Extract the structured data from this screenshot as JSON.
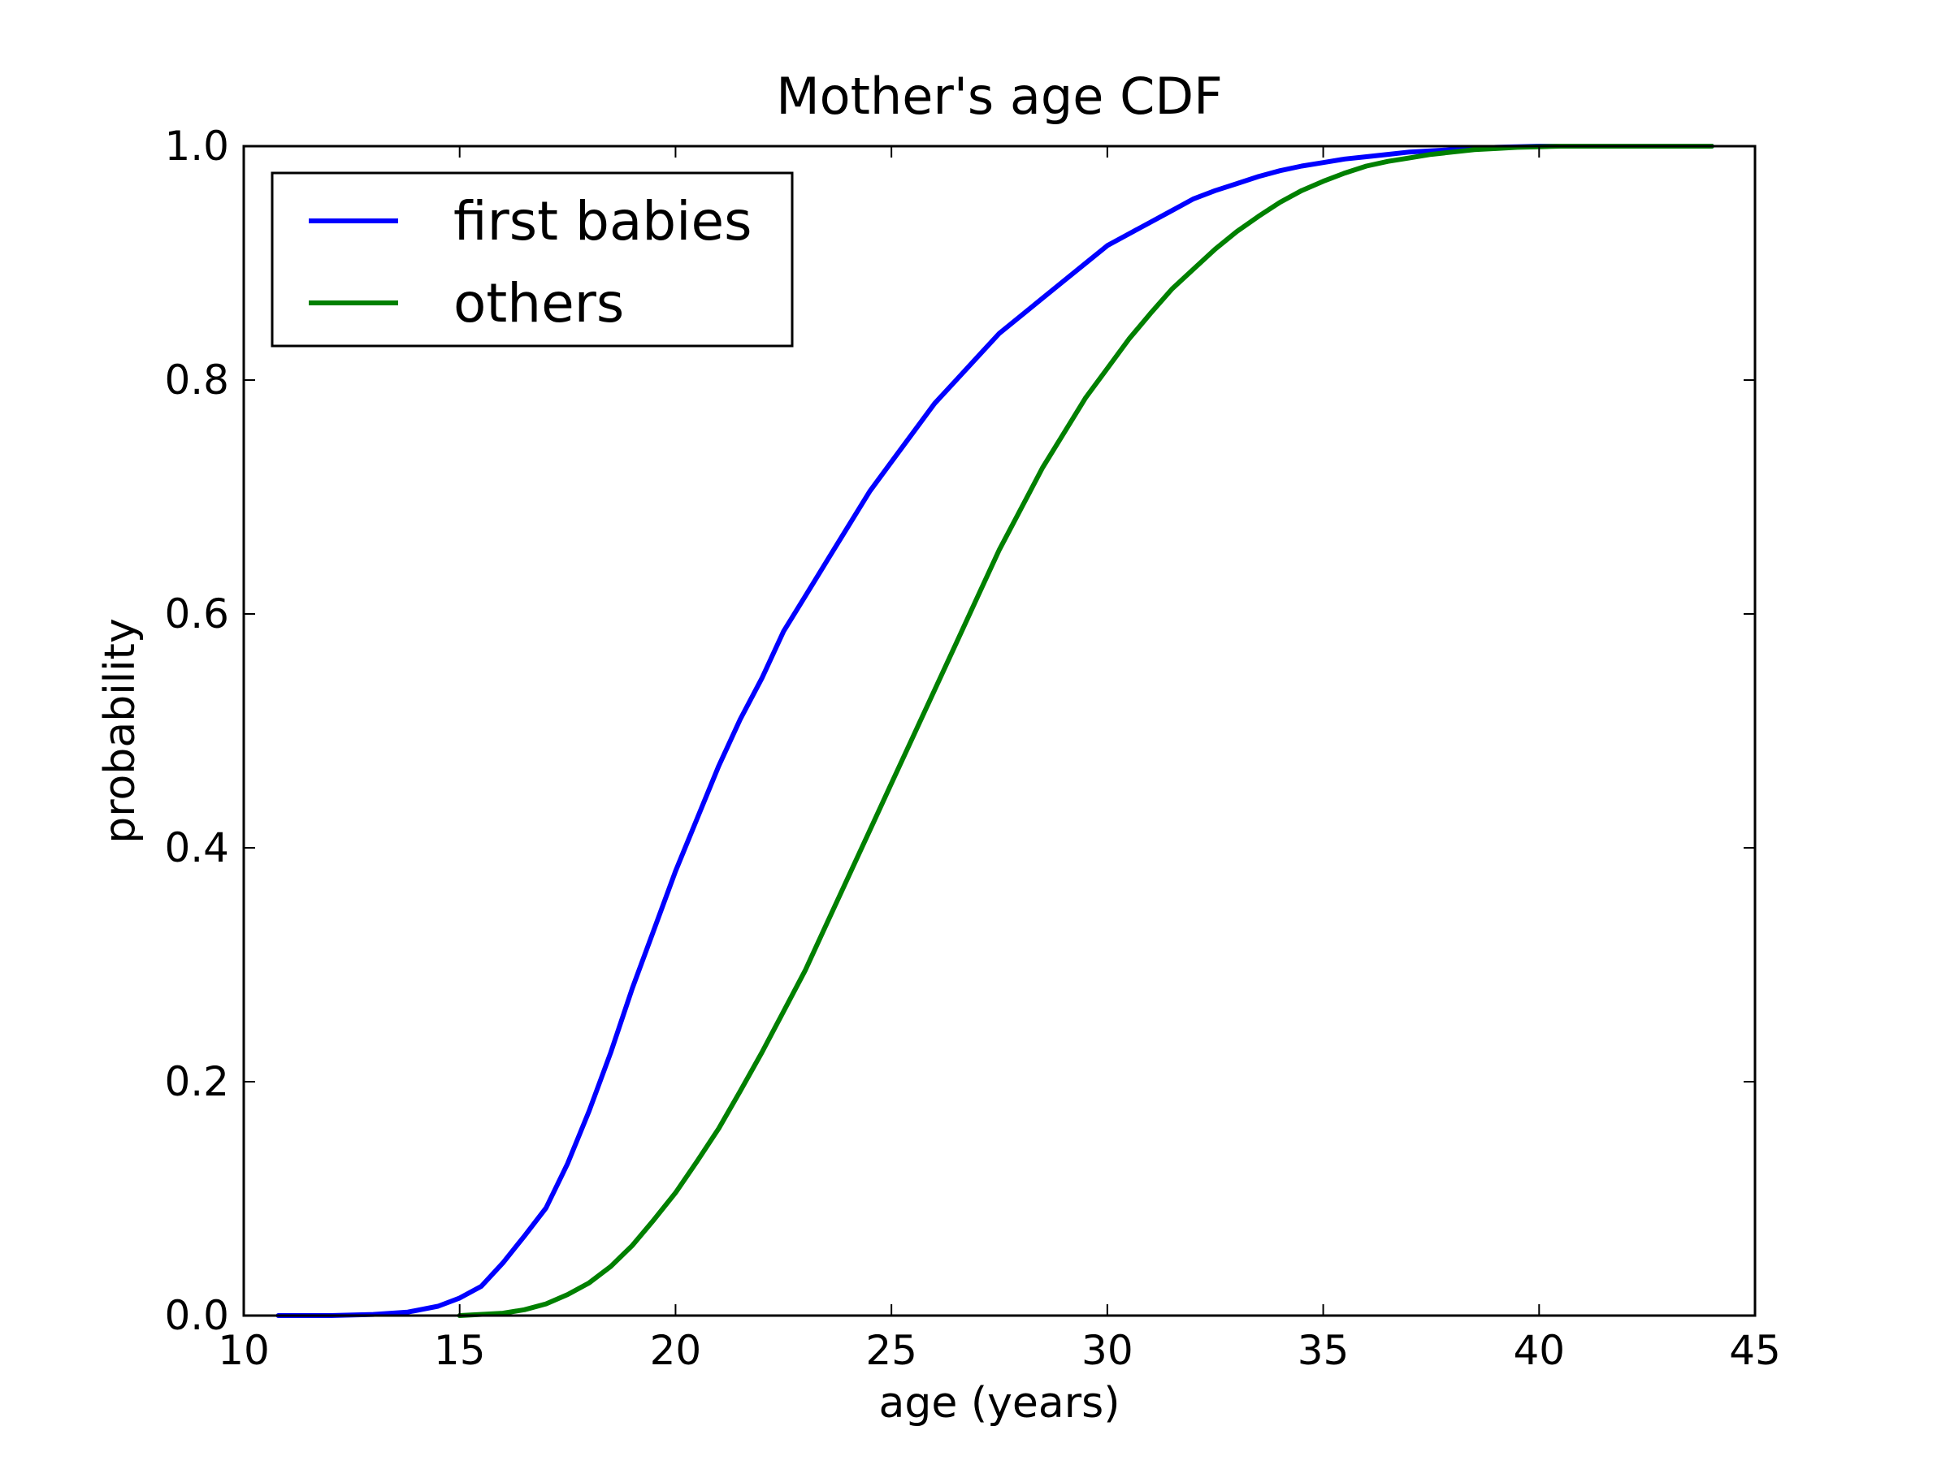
{
  "chart_data": {
    "type": "line",
    "title": "Mother's age CDF",
    "xlabel": "age (years)",
    "ylabel": "probability",
    "xlim": [
      10,
      45
    ],
    "ylim": [
      0.0,
      1.0
    ],
    "xticks": [
      "10",
      "15",
      "20",
      "25",
      "30",
      "35",
      "40",
      "45"
    ],
    "yticks": [
      "0.0",
      "0.2",
      "0.4",
      "0.6",
      "0.8",
      "1.0"
    ],
    "grid": false,
    "legend_position": "upper-left",
    "series": [
      {
        "name": "first babies",
        "color": "#0000ff",
        "x": [
          10.8,
          12.0,
          13.0,
          13.8,
          14.5,
          15.0,
          15.5,
          16.0,
          16.5,
          17.0,
          17.5,
          18.0,
          18.5,
          19.0,
          19.5,
          20.0,
          20.5,
          21.0,
          21.5,
          22.0,
          22.5,
          23.0,
          23.5,
          24.0,
          24.5,
          25.0,
          25.5,
          26.0,
          26.5,
          27.0,
          27.5,
          28.0,
          28.5,
          29.0,
          29.5,
          30.0,
          30.5,
          31.0,
          31.5,
          32.0,
          32.5,
          33.0,
          33.5,
          34.0,
          34.5,
          35.0,
          35.5,
          36.0,
          36.5,
          37.0,
          37.5,
          38.0,
          38.5,
          39.0,
          39.5,
          40.0,
          41.0,
          42.0,
          44.0
        ],
        "y": [
          0.0,
          0.0,
          0.001,
          0.003,
          0.008,
          0.015,
          0.025,
          0.045,
          0.068,
          0.092,
          0.13,
          0.175,
          0.225,
          0.28,
          0.33,
          0.38,
          0.425,
          0.47,
          0.51,
          0.545,
          0.585,
          0.615,
          0.645,
          0.675,
          0.705,
          0.73,
          0.755,
          0.78,
          0.8,
          0.82,
          0.84,
          0.855,
          0.87,
          0.885,
          0.9,
          0.915,
          0.925,
          0.935,
          0.945,
          0.955,
          0.962,
          0.968,
          0.974,
          0.979,
          0.983,
          0.986,
          0.989,
          0.991,
          0.993,
          0.995,
          0.996,
          0.997,
          0.998,
          0.999,
          0.9995,
          1.0,
          1.0,
          1.0,
          1.0
        ]
      },
      {
        "name": "others",
        "color": "#008000",
        "x": [
          15.0,
          16.0,
          16.5,
          17.0,
          17.5,
          18.0,
          18.5,
          19.0,
          19.5,
          20.0,
          20.5,
          21.0,
          21.5,
          22.0,
          22.5,
          23.0,
          23.5,
          24.0,
          24.5,
          25.0,
          25.5,
          26.0,
          26.5,
          27.0,
          27.5,
          28.0,
          28.5,
          29.0,
          29.5,
          30.0,
          30.5,
          31.0,
          31.5,
          32.0,
          32.5,
          33.0,
          33.5,
          34.0,
          34.5,
          35.0,
          35.5,
          36.0,
          36.5,
          37.0,
          37.5,
          38.0,
          38.5,
          39.0,
          39.5,
          40.0,
          40.5,
          41.0,
          42.0,
          43.0,
          44.0
        ],
        "y": [
          0.0,
          0.002,
          0.005,
          0.01,
          0.018,
          0.028,
          0.042,
          0.06,
          0.082,
          0.105,
          0.132,
          0.16,
          0.192,
          0.225,
          0.26,
          0.295,
          0.335,
          0.375,
          0.415,
          0.455,
          0.495,
          0.535,
          0.575,
          0.615,
          0.655,
          0.69,
          0.725,
          0.755,
          0.785,
          0.81,
          0.835,
          0.857,
          0.878,
          0.895,
          0.912,
          0.927,
          0.94,
          0.952,
          0.962,
          0.97,
          0.977,
          0.983,
          0.987,
          0.99,
          0.993,
          0.995,
          0.997,
          0.998,
          0.999,
          0.9995,
          1.0,
          1.0,
          1.0,
          1.0,
          1.0
        ]
      }
    ]
  }
}
